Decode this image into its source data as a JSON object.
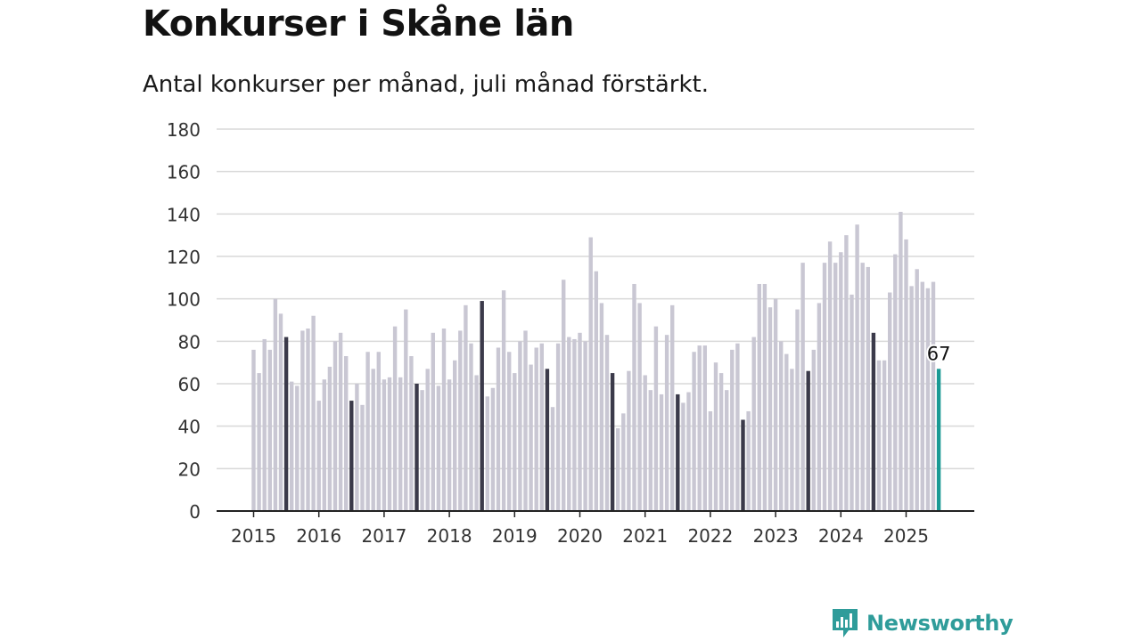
{
  "header": {
    "title": "Konkurser i Skåne län",
    "subtitle": "Antal konkurser per månad, juli månad förstärkt."
  },
  "brand": {
    "name": "Newsworthy"
  },
  "colors": {
    "regular_bar": "#c9c7d3",
    "highlight_bar": "#3b3a4a",
    "latest_bar": "#1a9a94",
    "grid": "#d9d9d9",
    "axis": "#222222",
    "brand": "#2f9c9a"
  },
  "chart_data": {
    "type": "bar",
    "title": "Konkurser i Skåne län",
    "subtitle": "Antal konkurser per månad, juli månad förstärkt.",
    "ylim": [
      0,
      180
    ],
    "yticks": [
      0,
      20,
      40,
      60,
      80,
      100,
      120,
      140,
      160,
      180
    ],
    "xtick_labels": [
      "2015",
      "2016",
      "2017",
      "2018",
      "2019",
      "2020",
      "2021",
      "2022",
      "2023",
      "2024",
      "2025"
    ],
    "grid": true,
    "highlight": "juli",
    "start": "2015-01",
    "end": "2025-07",
    "values": [
      76,
      65,
      81,
      76,
      100,
      93,
      82,
      61,
      59,
      85,
      86,
      92,
      52,
      62,
      68,
      80,
      84,
      73,
      52,
      60,
      50,
      75,
      67,
      75,
      62,
      63,
      87,
      63,
      95,
      73,
      60,
      57,
      67,
      84,
      59,
      86,
      62,
      71,
      85,
      97,
      79,
      64,
      99,
      54,
      58,
      77,
      104,
      75,
      65,
      80,
      85,
      69,
      77,
      79,
      67,
      49,
      79,
      109,
      82,
      81,
      84,
      80,
      129,
      113,
      98,
      83,
      65,
      39,
      46,
      66,
      107,
      98,
      64,
      57,
      87,
      55,
      83,
      97,
      55,
      51,
      56,
      75,
      78,
      78,
      47,
      70,
      65,
      57,
      76,
      79,
      43,
      47,
      82,
      107,
      107,
      96,
      100,
      80,
      74,
      67,
      95,
      117,
      66,
      76,
      98,
      117,
      127,
      117,
      122,
      130,
      102,
      135,
      117,
      115,
      84,
      71,
      71,
      103,
      121,
      141,
      128,
      106,
      114,
      108,
      105,
      108,
      67
    ],
    "latest_label": "67"
  }
}
